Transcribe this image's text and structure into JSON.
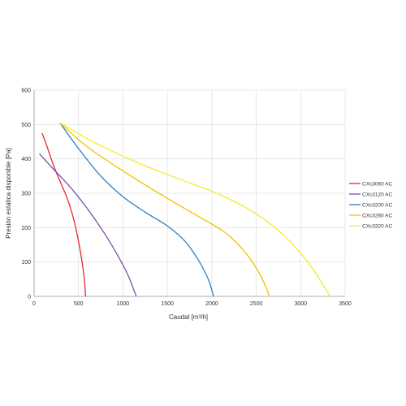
{
  "chart_data": {
    "type": "line",
    "xlabel": "Caudal [m³/h]",
    "ylabel": "Presión estática disponible [Pa]",
    "xlim": [
      0,
      3500
    ],
    "ylim": [
      0,
      600
    ],
    "x_ticks": [
      "0",
      "500",
      "1000",
      "1500",
      "2000",
      "2500",
      "3000",
      "3500"
    ],
    "y_ticks": [
      "0",
      "100",
      "200",
      "300",
      "400",
      "500",
      "600"
    ],
    "grid": true,
    "legend_position": "right",
    "series": [
      {
        "name": "CXc3060 AC",
        "color": "#e8262c",
        "points": [
          [
            90,
            475
          ],
          [
            140,
            440
          ],
          [
            220,
            380
          ],
          [
            300,
            330
          ],
          [
            380,
            280
          ],
          [
            450,
            220
          ],
          [
            500,
            160
          ],
          [
            540,
            100
          ],
          [
            565,
            50
          ],
          [
            580,
            0
          ]
        ]
      },
      {
        "name": "CXc3120 AC",
        "color": "#7b4fa6",
        "points": [
          [
            60,
            415
          ],
          [
            200,
            375
          ],
          [
            400,
            320
          ],
          [
            600,
            255
          ],
          [
            800,
            180
          ],
          [
            950,
            115
          ],
          [
            1060,
            60
          ],
          [
            1150,
            0
          ]
        ]
      },
      {
        "name": "CXc3200 AC",
        "color": "#2d7fc0",
        "points": [
          [
            290,
            505
          ],
          [
            500,
            430
          ],
          [
            750,
            350
          ],
          [
            1000,
            290
          ],
          [
            1250,
            245
          ],
          [
            1500,
            205
          ],
          [
            1700,
            160
          ],
          [
            1850,
            105
          ],
          [
            1960,
            50
          ],
          [
            2020,
            0
          ]
        ]
      },
      {
        "name": "CXc3260 AC",
        "color": "#f2c200",
        "points": [
          [
            290,
            505
          ],
          [
            600,
            435
          ],
          [
            1000,
            365
          ],
          [
            1500,
            285
          ],
          [
            2000,
            210
          ],
          [
            2200,
            175
          ],
          [
            2400,
            120
          ],
          [
            2550,
            60
          ],
          [
            2650,
            0
          ]
        ]
      },
      {
        "name": "CXc3320 AC",
        "color": "#f4ea2a",
        "points": [
          [
            290,
            505
          ],
          [
            700,
            445
          ],
          [
            1200,
            385
          ],
          [
            1700,
            335
          ],
          [
            2100,
            295
          ],
          [
            2500,
            240
          ],
          [
            2800,
            180
          ],
          [
            3050,
            110
          ],
          [
            3200,
            55
          ],
          [
            3330,
            0
          ]
        ]
      }
    ]
  }
}
